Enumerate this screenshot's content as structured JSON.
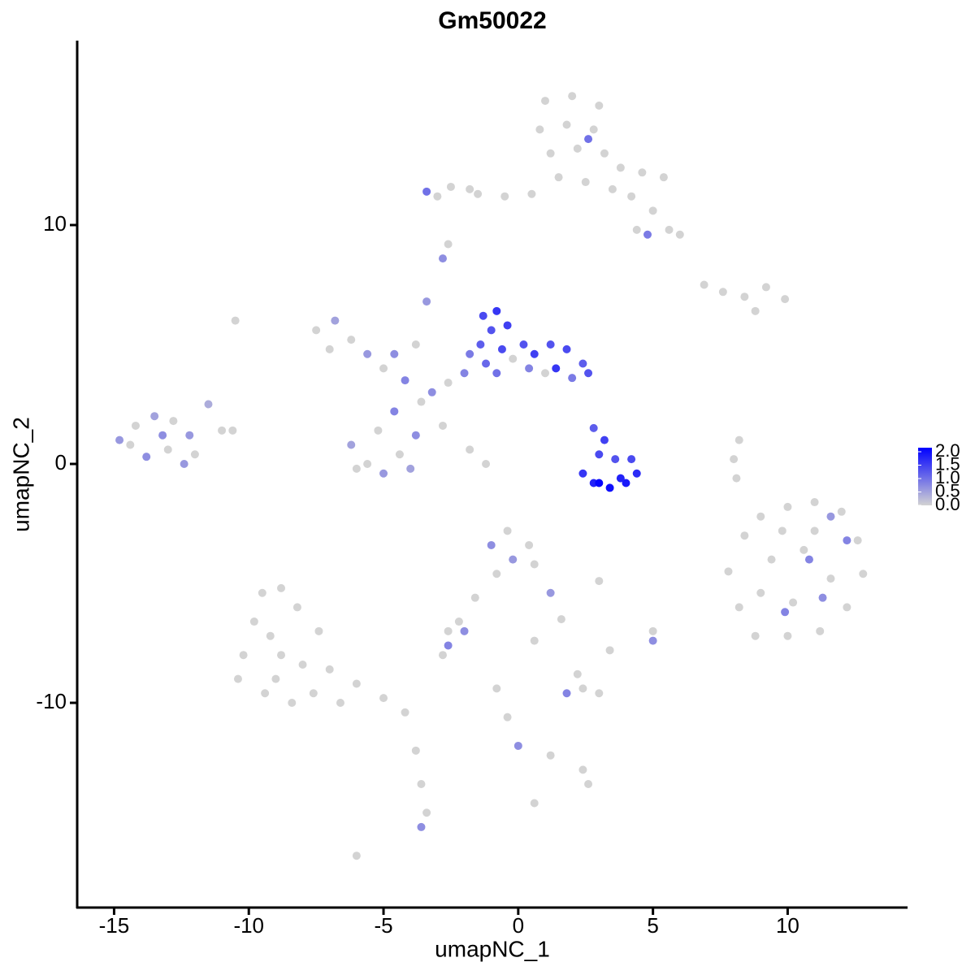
{
  "chart_data": {
    "type": "scatter",
    "title": "Gm50022",
    "x_label": "umapNC_1",
    "y_label": "umapNC_2",
    "x": [
      1.0,
      2.0,
      3.0,
      0.8,
      1.8,
      2.8,
      3.2,
      1.2,
      2.2,
      3.8,
      4.6,
      5.4,
      4.2,
      5.0,
      5.6,
      4.4,
      6.0,
      0.5,
      -0.5,
      -1.5,
      -2.5,
      -3.0,
      2.5,
      1.5,
      3.5,
      2.6,
      4.8,
      -3.4,
      6.9,
      7.6,
      8.4,
      9.2,
      9.9,
      8.8,
      -14.8,
      -14.2,
      -13.5,
      -12.8,
      -12.2,
      -11.5,
      -11.0,
      -13.8,
      -13.0,
      -12.4,
      -14.4,
      -13.2,
      -10.6,
      -12.0,
      -7.5,
      -6.8,
      -6.2,
      -5.6,
      -7.0,
      -5.0,
      -4.6,
      -4.2,
      -3.4,
      -3.8,
      -6.2,
      -5.6,
      -5.0,
      -4.4,
      -3.8,
      -5.2,
      -6.0,
      -4.0,
      -4.6,
      -3.6,
      -3.2,
      -2.6,
      -2.0,
      -2.8,
      -1.8,
      -1.2,
      -1.3,
      -0.8,
      -1.0,
      -0.4,
      -1.4,
      -0.6,
      -1.2,
      -0.2,
      0.2,
      -0.8,
      -1.8,
      0.6,
      1.2,
      1.8,
      2.4,
      1.4,
      2.0,
      1.0,
      2.6,
      0.4,
      2.8,
      3.2,
      3.0,
      3.6,
      2.4,
      2.8,
      3.4,
      3.0,
      4.0,
      4.4,
      4.2,
      3.8,
      7.8,
      8.4,
      9.0,
      10.0,
      11.0,
      12.0,
      12.6,
      12.8,
      12.2,
      11.2,
      10.0,
      8.8,
      8.2,
      9.4,
      10.6,
      11.6,
      10.2,
      9.0,
      11.0,
      9.8,
      10.8,
      11.6,
      12.2,
      9.9,
      11.3,
      8.2,
      8.0,
      8.1,
      -9.5,
      -8.8,
      -8.2,
      -9.8,
      -9.2,
      -10.2,
      -10.4,
      -9.4,
      -8.4,
      -7.6,
      -8.0,
      -8.8,
      -7.0,
      -6.0,
      -5.0,
      -4.2,
      -7.4,
      -9.0,
      -6.6,
      -3.8,
      -3.6,
      -3.4,
      -3.6,
      -6.0,
      -1.0,
      -0.4,
      0.4,
      0.6,
      -0.2,
      -0.8,
      1.2,
      -1.6,
      -2.2,
      -2.6,
      -2.0,
      -2.6,
      0.6,
      1.6,
      3.0,
      1.8,
      2.4,
      3.0,
      2.2,
      3.4,
      5.0,
      5.0,
      -0.8,
      -0.4,
      0,
      1.2,
      2.4,
      2.6,
      -2.8,
      0.6,
      -10.5,
      -2.8,
      -2.6,
      -1.8
    ],
    "y": [
      15.2,
      15.4,
      15.0,
      14.0,
      14.2,
      14.0,
      13.0,
      13.0,
      13.2,
      12.4,
      12.2,
      12.0,
      11.2,
      10.6,
      9.8,
      9.8,
      9.6,
      11.3,
      11.2,
      11.3,
      11.6,
      11.2,
      11.8,
      12.0,
      11.5,
      13.6,
      9.6,
      11.4,
      7.5,
      7.2,
      7.0,
      7.4,
      6.9,
      6.4,
      1.0,
      1.6,
      2.0,
      1.8,
      1.2,
      2.5,
      1.4,
      0.3,
      0.6,
      0.0,
      0.8,
      1.2,
      1.4,
      0.4,
      5.6,
      6.0,
      5.2,
      4.6,
      4.8,
      4.0,
      4.6,
      3.5,
      6.8,
      5.0,
      0.8,
      0,
      -0.4,
      0.4,
      1.2,
      1.4,
      -0.2,
      -0.2,
      2.2,
      2.6,
      3.0,
      3.4,
      3.8,
      1.6,
      0.6,
      0.0,
      6.2,
      6.4,
      5.6,
      5.8,
      5.0,
      4.8,
      4.2,
      4.4,
      5.0,
      3.8,
      4.6,
      4.6,
      5.0,
      4.8,
      4.2,
      4.0,
      3.6,
      3.8,
      3.8,
      4.0,
      1.5,
      1.0,
      0.4,
      0.2,
      -0.4,
      -0.8,
      -1.0,
      -0.8,
      -0.8,
      -0.4,
      0.2,
      -0.6,
      -4.5,
      -3.0,
      -2.2,
      -1.8,
      -1.6,
      -2.0,
      -3.2,
      -4.6,
      -6.0,
      -7.0,
      -7.2,
      -7.2,
      -6.0,
      -4.0,
      -3.6,
      -4.8,
      -5.8,
      -5.4,
      -2.8,
      -2.8,
      -4.0,
      -2.2,
      -3.2,
      -6.2,
      -5.6,
      1.0,
      0.2,
      -0.6,
      -5.4,
      -5.2,
      -6.0,
      -6.6,
      -7.2,
      -8.0,
      -9.0,
      -9.6,
      -10.0,
      -9.6,
      -8.4,
      -8.0,
      -8.6,
      -9.2,
      -9.8,
      -10.4,
      -7.0,
      -9.0,
      -10.0,
      -12.0,
      -13.4,
      -14.6,
      -15.2,
      -16.4,
      -3.4,
      -2.8,
      -3.4,
      -4.2,
      -4.0,
      -4.6,
      -5.4,
      -5.6,
      -6.6,
      -7.0,
      -7.0,
      -7.6,
      -7.4,
      -6.5,
      -4.9,
      -9.6,
      -9.4,
      -9.6,
      -8.8,
      -7.8,
      -7.4,
      -7.0,
      -9.4,
      -10.6,
      -11.8,
      -12.2,
      -12.8,
      -13.4,
      -8.0,
      -14.2,
      6.0,
      8.6,
      9.2,
      11.5
    ],
    "values": [
      0,
      0,
      0,
      0,
      0,
      0,
      0,
      0,
      0,
      0,
      0,
      0,
      0,
      0,
      0,
      0,
      0,
      0,
      0,
      0,
      0,
      0,
      0,
      0,
      0,
      1.0,
      0.9,
      1.0,
      0,
      0,
      0,
      0,
      0,
      0,
      0.6,
      0,
      0.5,
      0,
      0.6,
      0.4,
      0,
      0.7,
      0,
      0.6,
      0,
      0.7,
      0,
      0,
      0,
      0.5,
      0,
      0.6,
      0,
      0,
      0.7,
      0.8,
      0.6,
      0,
      0.5,
      0,
      0.6,
      0,
      0.7,
      0,
      0,
      0.5,
      0.8,
      0,
      0.7,
      0,
      0.8,
      0,
      0,
      0,
      1.4,
      1.6,
      1.3,
      1.5,
      1.2,
      1.4,
      1.1,
      0,
      1.3,
      1.0,
      0.9,
      1.5,
      1.3,
      1.4,
      1.2,
      1.6,
      0.9,
      0,
      1.3,
      0.8,
      1.2,
      1.5,
      1.4,
      1.3,
      1.6,
      1.8,
      2.0,
      2.1,
      1.9,
      1.7,
      1.4,
      1.8,
      0,
      0,
      0,
      0,
      0,
      0,
      0,
      0,
      0,
      0,
      0,
      0,
      0,
      0,
      0,
      0,
      0,
      0,
      0,
      0,
      0.8,
      0.6,
      0.8,
      0.8,
      0.7,
      0,
      0,
      0,
      0,
      0,
      0,
      0,
      0,
      0,
      0,
      0,
      0,
      0,
      0,
      0,
      0,
      0,
      0,
      0,
      0,
      0,
      0,
      0,
      0,
      0,
      0.7,
      0,
      0.7,
      0,
      0,
      0,
      0.6,
      0,
      0.6,
      0,
      0,
      0,
      0.7,
      0.8,
      0,
      0,
      0,
      0.8,
      0,
      0,
      0,
      0,
      0.7,
      0,
      0,
      0,
      0.7,
      0,
      0,
      0,
      0,
      0,
      0,
      0.7,
      0,
      0
    ],
    "xlim": [
      -16.37,
      14.45
    ],
    "ylim": [
      -18.57,
      17.72
    ],
    "xticks": [
      -15,
      -10,
      -5,
      0,
      5,
      10
    ],
    "yticks": [
      -10,
      0,
      10
    ],
    "colors": [
      "#d3d3d3",
      "#0000ff"
    ],
    "clim": [
      0,
      2.15
    ],
    "cticks": [
      {
        "value": 0,
        "label": "0.0"
      },
      0.5,
      {
        "value": 1,
        "label": "1.0"
      },
      1.5,
      {
        "value": 2,
        "label": "2.0"
      }
    ]
  }
}
